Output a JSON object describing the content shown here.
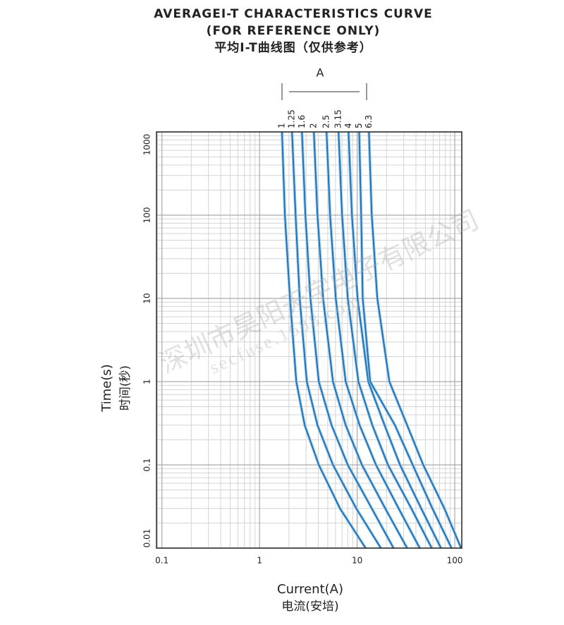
{
  "chart_data": {
    "type": "line",
    "title": "AVERAGEI-T CHARACTERISTICS CURVE",
    "subtitle": "(FOR REFERENCE ONLY)",
    "title_cn": "平均I-T曲线图（仅供参考）",
    "bracket_label": "A",
    "x_label": "Current(A)",
    "x_label_cn": "电流(安培)",
    "y_label": "Time(s)",
    "y_label_cn": "时间(秒)",
    "log_x": true,
    "log_y": true,
    "grid": true,
    "xlim": [
      0.088,
      118
    ],
    "ylim": [
      0.01,
      1000
    ],
    "xticks": [
      0.1,
      1,
      10,
      100
    ],
    "yticks": [
      0.01,
      0.1,
      1,
      10,
      100,
      1000
    ],
    "x_minor_ticks": [
      0.09,
      0.2,
      0.3,
      0.4,
      0.5,
      0.6,
      0.7,
      0.8,
      0.9,
      2,
      3,
      4,
      5,
      6,
      7,
      8,
      9,
      20,
      30,
      40,
      50,
      60,
      70,
      80,
      90
    ],
    "y_minor_ticks": [
      0.02,
      0.03,
      0.04,
      0.05,
      0.06,
      0.07,
      0.08,
      0.09,
      0.2,
      0.3,
      0.4,
      0.5,
      0.6,
      0.7,
      0.8,
      0.9,
      2,
      3,
      4,
      5,
      6,
      7,
      8,
      9,
      20,
      30,
      40,
      50,
      60,
      70,
      80,
      90,
      200,
      300,
      400,
      500,
      600,
      700,
      800,
      900
    ],
    "series": [
      {
        "name": "1",
        "color": "#1b6fb3",
        "x": [
          1.7,
          1.82,
          2.05,
          2.38,
          2.9,
          4.05,
          6.67,
          12.2
        ],
        "values": [
          1000,
          100,
          10,
          1,
          0.3,
          0.1,
          0.03,
          0.01
        ]
      },
      {
        "name": "1.25",
        "color": "#1b6fb3",
        "x": [
          2.15,
          2.34,
          2.58,
          3.05,
          3.92,
          5.65,
          9.79,
          17.5
        ],
        "values": [
          1000,
          100,
          10,
          1,
          0.3,
          0.1,
          0.03,
          0.01
        ]
      },
      {
        "name": "1.6",
        "color": "#1b6fb3",
        "x": [
          2.72,
          2.95,
          3.32,
          4.05,
          5.47,
          8.02,
          14.1,
          23.6
        ],
        "values": [
          1000,
          100,
          10,
          1,
          0.3,
          0.1,
          0.03,
          0.01
        ]
      },
      {
        "name": "2",
        "color": "#1b6fb3",
        "x": [
          3.6,
          3.92,
          4.48,
          5.65,
          7.62,
          11.2,
          19.4,
          32.5
        ],
        "values": [
          1000,
          100,
          10,
          1,
          0.3,
          0.1,
          0.03,
          0.01
        ]
      },
      {
        "name": "2.5",
        "color": "#1b6fb3",
        "x": [
          4.86,
          5.28,
          6.04,
          7.62,
          10.6,
          15.6,
          26.6,
          43.8
        ],
        "values": [
          1000,
          100,
          10,
          1,
          0.3,
          0.1,
          0.03,
          0.01
        ]
      },
      {
        "name": "3.15",
        "color": "#1b6fb3",
        "x": [
          6.45,
          7.01,
          8.02,
          10.3,
          14.3,
          20.7,
          35.9,
          58.1
        ],
        "values": [
          1000,
          100,
          10,
          1,
          0.3,
          0.1,
          0.03,
          0.01
        ]
      },
      {
        "name": "4",
        "color": "#1b6fb3",
        "x": [
          8.15,
          8.85,
          10.1,
          13.0,
          19.1,
          27.5,
          45.3,
          72.2
        ],
        "values": [
          1000,
          100,
          10,
          1,
          0.3,
          0.1,
          0.03,
          0.01
        ]
      },
      {
        "name": "5",
        "color": "#1b6fb3",
        "x": [
          10.5,
          11.0,
          11.4,
          13.6,
          24.4,
          37.1,
          59.0,
          92.7
        ],
        "values": [
          1000,
          100,
          10,
          1,
          0.3,
          0.1,
          0.03,
          0.01
        ]
      },
      {
        "name": "6.3",
        "color": "#1b6fb3",
        "x": [
          13.2,
          14.1,
          16.1,
          21.4,
          32.5,
          47.5,
          78.3,
          116
        ],
        "values": [
          1000,
          100,
          10,
          1,
          0.3,
          0.1,
          0.03,
          0.01
        ]
      }
    ]
  },
  "watermark": {
    "company": "深圳市昊阳天宇电子有限公司",
    "site": "secfuse.1688.com"
  }
}
